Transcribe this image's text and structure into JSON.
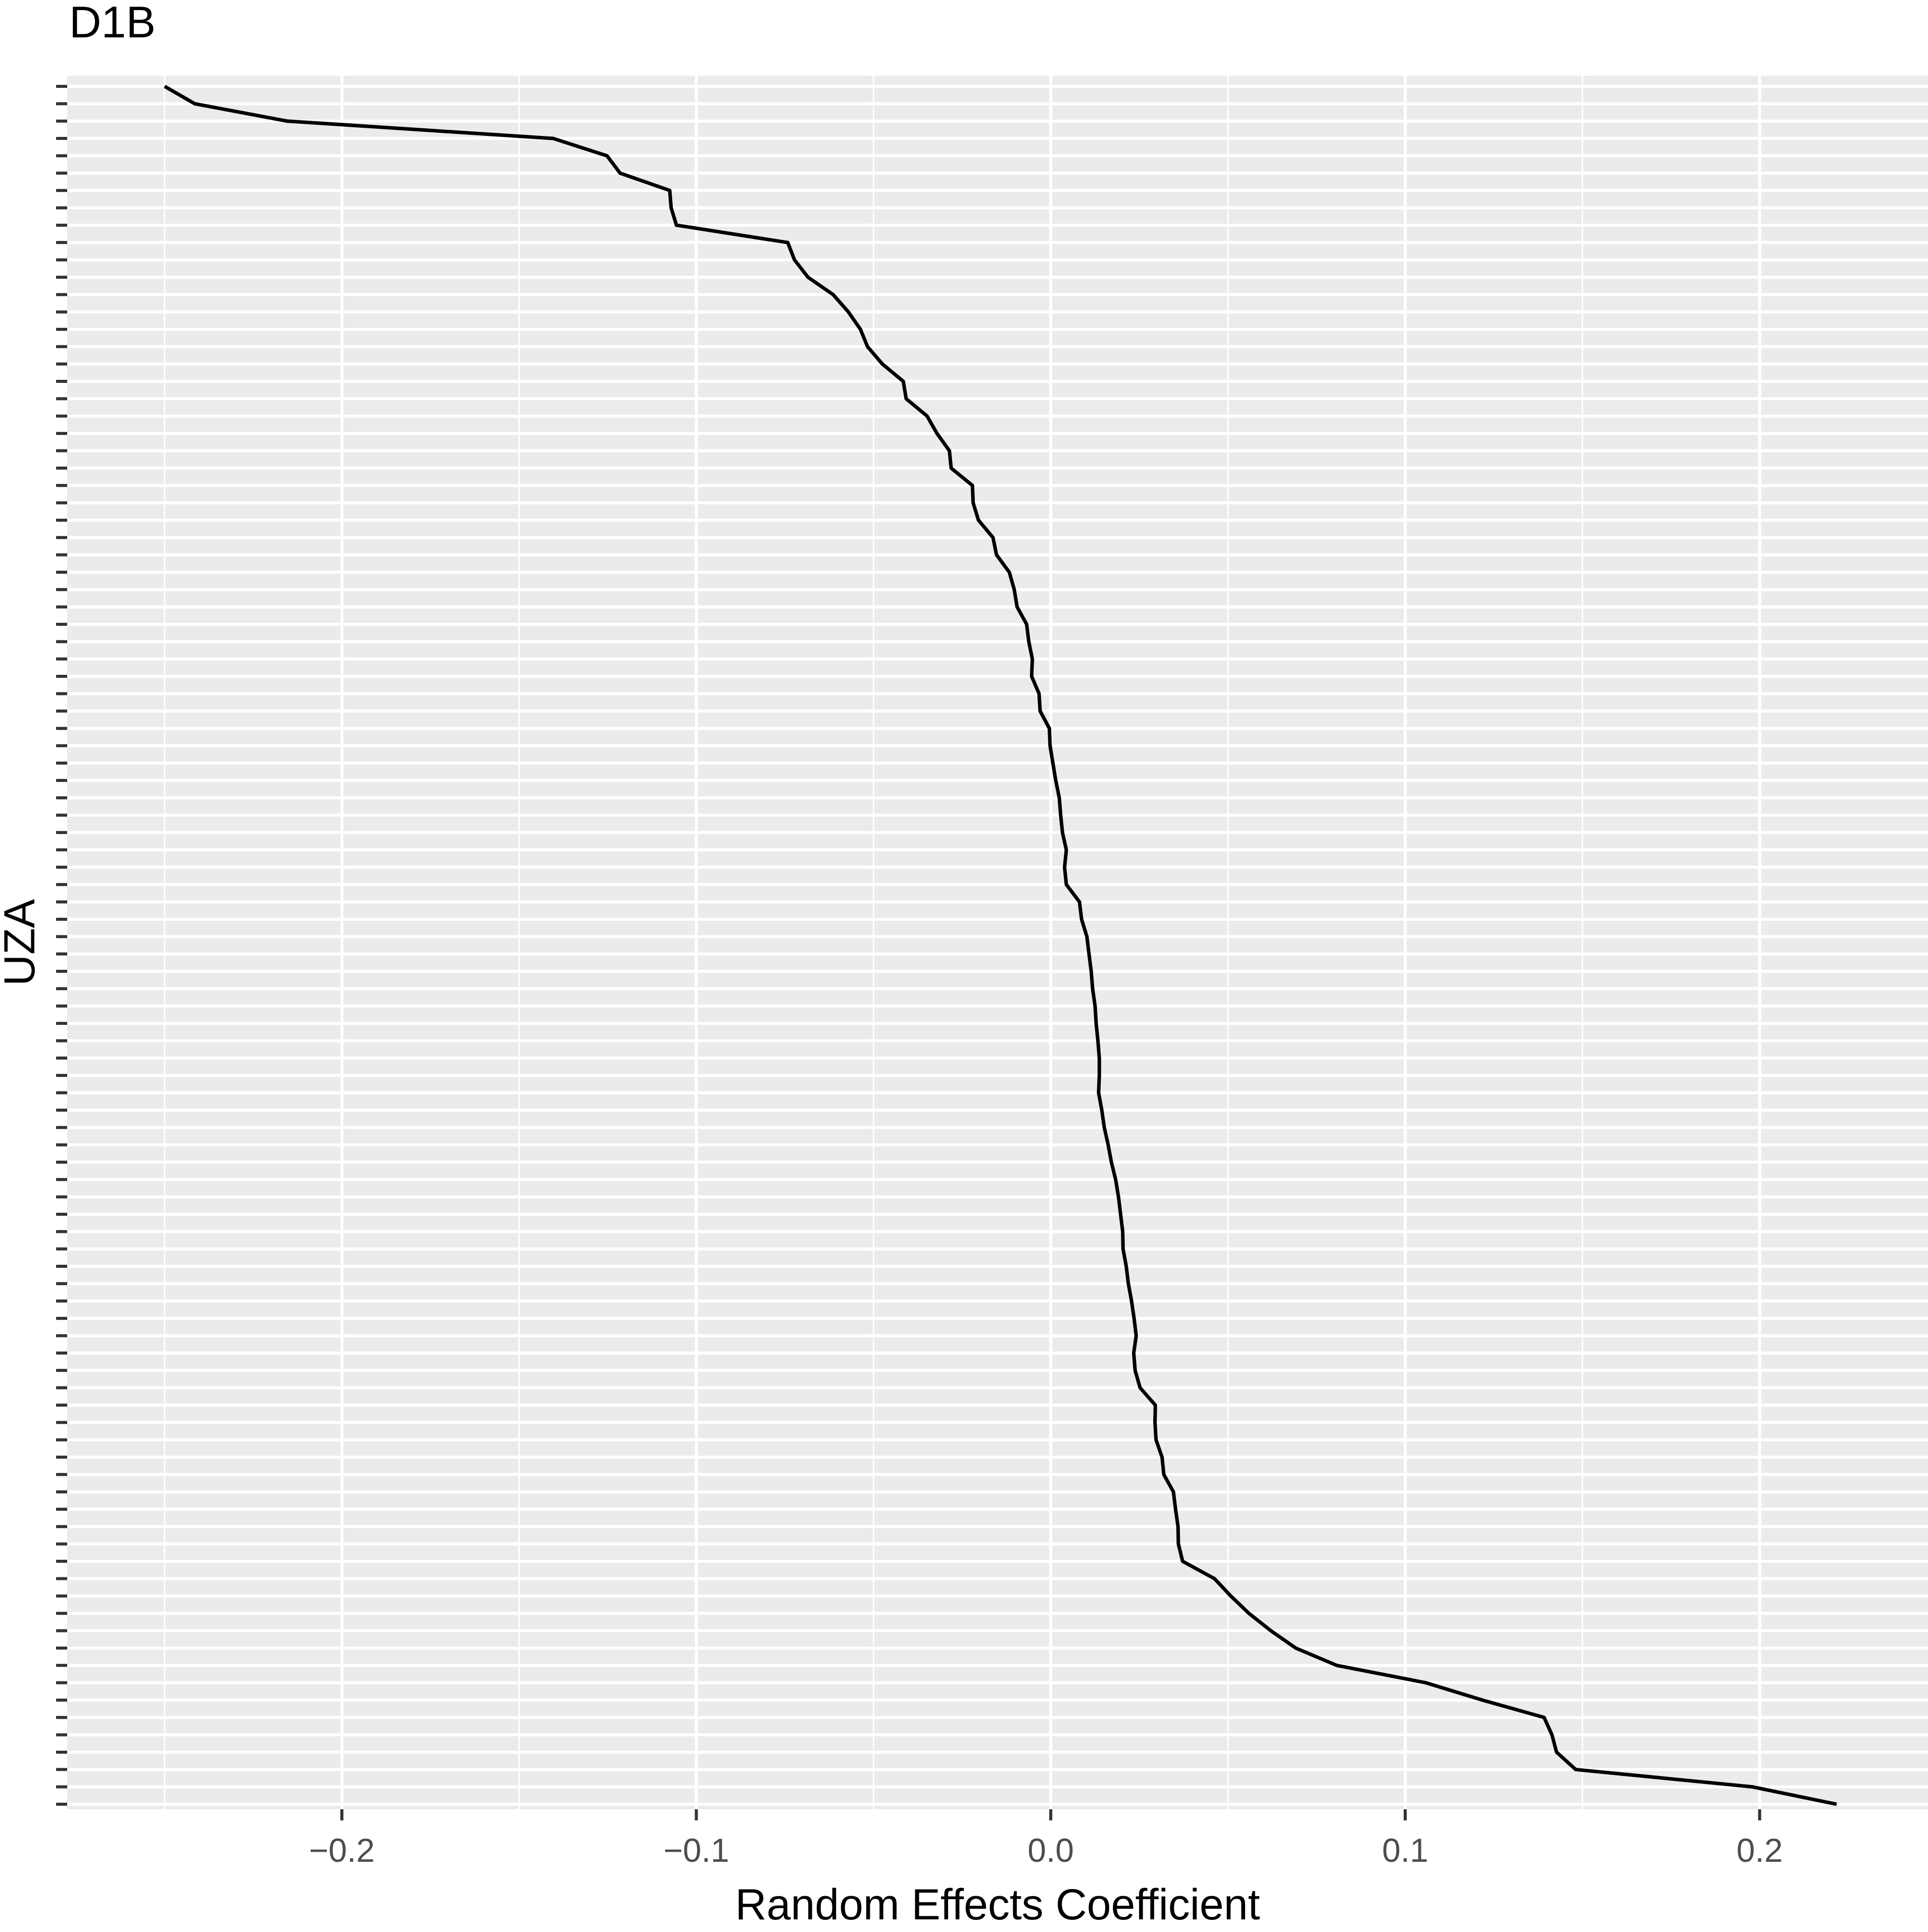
{
  "chart_data": {
    "type": "line",
    "title": "D1B",
    "xlabel": "Random Effects Coefficient",
    "ylabel": "UZA",
    "xlim": [
      -0.2775,
      0.2475
    ],
    "x_ticks": [
      -0.2,
      -0.1,
      0.0,
      0.1,
      0.2
    ],
    "x_tick_labels": [
      "−0.2",
      "−0.1",
      "0.0",
      "0.1",
      "0.2"
    ],
    "y_categories_count": 100,
    "y_tick_labels_shown": false,
    "grid": true,
    "background_color": "#ebebeb",
    "grid_color": "#ffffff",
    "line_color": "#000000",
    "legend": "none",
    "series": [
      {
        "values": [
          -0.25,
          -0.2415,
          -0.2155,
          -0.1404,
          -0.1252,
          -0.1215,
          -0.1075,
          -0.1071,
          -0.1056,
          -0.0742,
          -0.0723,
          -0.0685,
          -0.0614,
          -0.0571,
          -0.0537,
          -0.0517,
          -0.0475,
          -0.0416,
          -0.0408,
          -0.0349,
          -0.0321,
          -0.0286,
          -0.0281,
          -0.0221,
          -0.0219,
          -0.0204,
          -0.0163,
          -0.0153,
          -0.0117,
          -0.0103,
          -0.0095,
          -0.0068,
          -0.0062,
          -0.0052,
          -0.0054,
          -0.0033,
          -0.003,
          -0.0004,
          -0.0002,
          0.0006,
          0.0014,
          0.0024,
          0.0028,
          0.0033,
          0.0044,
          0.0039,
          0.0044,
          0.0081,
          0.0087,
          0.0102,
          0.0108,
          0.0114,
          0.0118,
          0.0125,
          0.0128,
          0.0133,
          0.0137,
          0.0137,
          0.0135,
          0.0144,
          0.0151,
          0.0162,
          0.0171,
          0.0183,
          0.0191,
          0.0197,
          0.0203,
          0.0204,
          0.0213,
          0.0219,
          0.0228,
          0.0235,
          0.0241,
          0.0234,
          0.0238,
          0.0252,
          0.0295,
          0.0294,
          0.0297,
          0.0314,
          0.0319,
          0.0346,
          0.0352,
          0.0359,
          0.036,
          0.0372,
          0.0462,
          0.0508,
          0.0559,
          0.0621,
          0.0691,
          0.0807,
          0.1058,
          0.1218,
          0.1392,
          0.1414,
          0.1427,
          0.1481,
          0.1979,
          0.2217
        ]
      }
    ]
  }
}
